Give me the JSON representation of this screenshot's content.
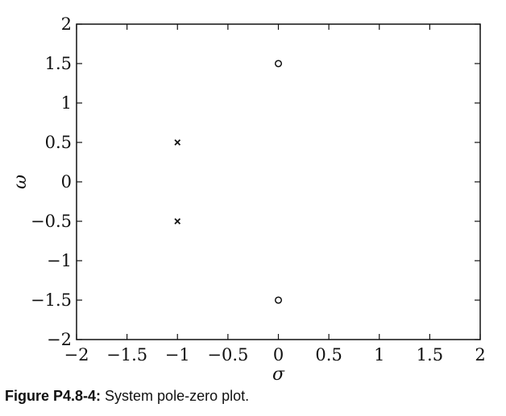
{
  "chart_data": {
    "type": "scatter",
    "xlabel": "σ",
    "ylabel": "ω",
    "xlim": [
      -2,
      2
    ],
    "ylim": [
      -2,
      2
    ],
    "grid": false,
    "xticks": [
      -2,
      -1.5,
      -1,
      -0.5,
      0,
      0.5,
      1,
      1.5,
      2
    ],
    "yticks": [
      -2,
      -1.5,
      -1,
      -0.5,
      0,
      0.5,
      1,
      1.5,
      2
    ],
    "xtick_labels": [
      "−2",
      "−1.5",
      "−1",
      "−0.5",
      "0",
      "0.5",
      "1",
      "1.5",
      "2"
    ],
    "ytick_labels": [
      "−2",
      "−1.5",
      "−1",
      "−0.5",
      "0",
      "0.5",
      "1",
      "1.5",
      "2"
    ],
    "series": [
      {
        "marker": "x",
        "points": [
          {
            "x": -1,
            "y": 0.5
          },
          {
            "x": -1,
            "y": -0.5
          }
        ]
      },
      {
        "marker": "o",
        "points": [
          {
            "x": 0,
            "y": 1.5
          },
          {
            "x": 0,
            "y": -1.5
          }
        ]
      }
    ]
  },
  "caption": {
    "label": "Figure P4.8-4:",
    "text": " System pole-zero plot."
  }
}
